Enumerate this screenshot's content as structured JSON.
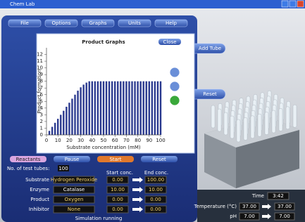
{
  "window_title": "Chem Lab",
  "menu": [
    "File",
    "Options",
    "Graphs",
    "Units",
    "Help"
  ],
  "side_buttons": [
    "Add Tube",
    "Reset"
  ],
  "graph_buttons": [
    "Close"
  ],
  "chart_data": {
    "type": "bar",
    "title": "Product Graphs",
    "x_label": "Substrate concentration (mM)",
    "y_label": "Product formation",
    "x": [
      2.5,
      5,
      7.5,
      10,
      12.5,
      15,
      17.5,
      20,
      22.5,
      25,
      27.5,
      30,
      32.5,
      35,
      37.5,
      40,
      42.5,
      45,
      47.5,
      50,
      52.5,
      55,
      57.5,
      60,
      62.5,
      65,
      67.5,
      70,
      72.5,
      75,
      77.5,
      80,
      82.5,
      85,
      87.5,
      90,
      92.5,
      95,
      97.5,
      100
    ],
    "values": [
      0.6,
      1.2,
      1.8,
      2.4,
      3,
      3.6,
      4.2,
      4.8,
      5.4,
      6,
      6.6,
      7.1,
      7.5,
      7.8,
      8,
      8,
      8,
      8,
      8,
      8,
      8,
      8,
      8,
      8,
      8,
      8,
      8,
      8,
      8,
      8,
      8,
      8,
      8,
      8,
      8,
      8,
      8,
      8,
      8,
      8
    ],
    "color": "#2b3a8f",
    "xlim": [
      0,
      100
    ],
    "xticks": [
      0,
      10,
      20,
      30,
      40,
      50,
      60,
      70,
      80,
      90,
      100
    ],
    "ylim": [
      0,
      13
    ],
    "yticks": [
      0,
      1,
      2,
      3,
      4,
      5,
      6,
      7,
      8,
      9,
      10,
      11,
      12
    ]
  },
  "tabs": [
    "Reactants",
    "Pause",
    "Start",
    "Reset"
  ],
  "tube_count": {
    "label": "No. of test tubes:",
    "value": "100"
  },
  "columns": [
    "Start conc.",
    "End conc."
  ],
  "rows": [
    {
      "label": "Substrate",
      "name": "Hydrogen Peroxide",
      "start": "0.00",
      "end": "100.00"
    },
    {
      "label": "Enzyme",
      "name": "Catalase",
      "start": "10.00",
      "end": "10.00"
    },
    {
      "label": "Product",
      "name": "Oxygen",
      "start": "0.00",
      "end": "0.00"
    },
    {
      "label": "Inhibitor",
      "name": "None",
      "start": "0.00",
      "end": "0.00"
    }
  ],
  "status": "Simulation running",
  "conditions": {
    "time_label": "Time",
    "time": "3:42",
    "temp_label": "Temperature (°C)",
    "temp_start": "37.00",
    "temp_end": "37.00",
    "ph_label": "pH",
    "ph_start": "7.00",
    "ph_end": "7.00"
  }
}
